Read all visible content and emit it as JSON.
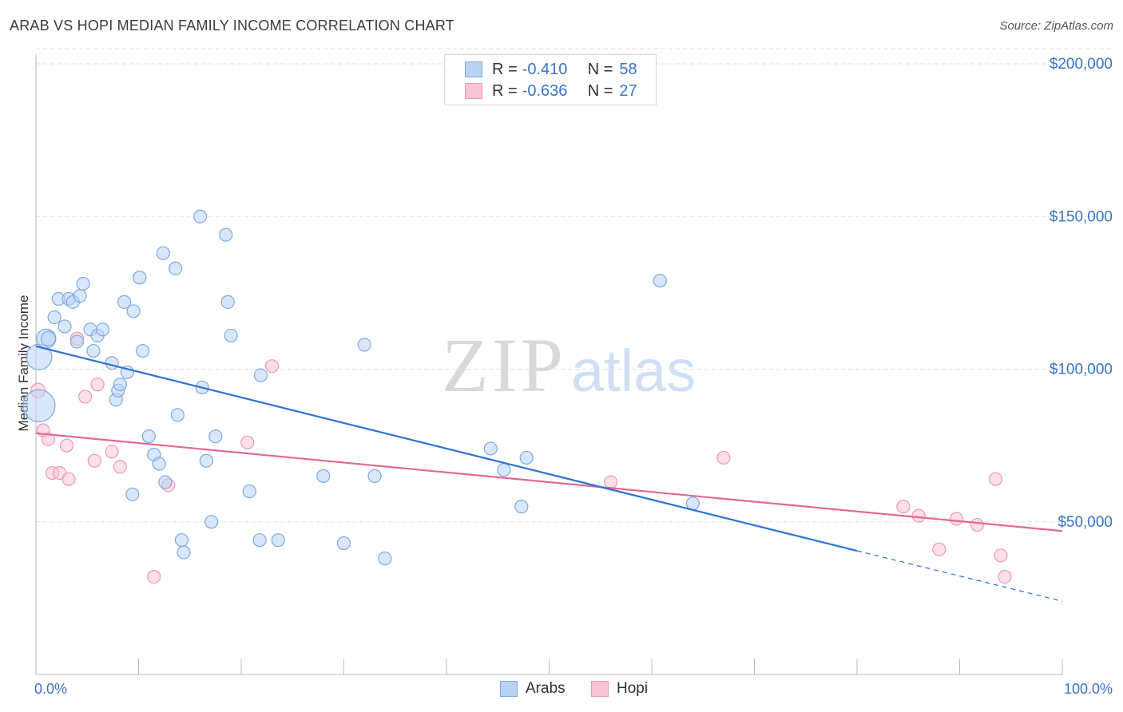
{
  "header": {
    "title": "ARAB VS HOPI MEDIAN FAMILY INCOME CORRELATION CHART",
    "source": "Source: ZipAtlas.com"
  },
  "watermark": {
    "zip": "ZIP",
    "atlas": "atlas"
  },
  "legend": {
    "rows": [
      {
        "r_label": "R =",
        "r_value": "-0.410",
        "n_label": "N =",
        "n_value": "58"
      },
      {
        "r_label": "R =",
        "r_value": "-0.636",
        "n_label": "N =",
        "n_value": "27"
      }
    ]
  },
  "bottom_legend": {
    "arabs": "Arabs",
    "hopi": "Hopi"
  },
  "colors": {
    "arabs_fill": "#b9d3f5",
    "arabs_stroke": "#7fa9e0",
    "arabs_line": "#2d73d2",
    "hopi_fill": "#f9c4d4",
    "hopi_stroke": "#ec9ab4",
    "hopi_line": "#e46892",
    "grid": "#e2e2e2",
    "value_text": "#3b73c8"
  },
  "chart_data": {
    "type": "scatter",
    "title": "ARAB VS HOPI MEDIAN FAMILY INCOME CORRELATION CHART",
    "xlabel": "",
    "ylabel": "Median Family Income",
    "xlim": [
      0,
      100
    ],
    "ylim": [
      0,
      205000
    ],
    "x_tick_labels": [
      "0.0%",
      "100.0%"
    ],
    "y_ticks": [
      50000,
      100000,
      150000,
      200000
    ],
    "y_tick_labels": [
      "$50,000",
      "$100,000",
      "$150,000",
      "$200,000"
    ],
    "grid": true,
    "legend_position": "top-center",
    "series": [
      {
        "name": "Arabs",
        "r": -0.41,
        "n": 58,
        "trend": {
          "x0": 0,
          "y0": 107500,
          "x1": 80,
          "y1": 40500,
          "dash_to_x": 100,
          "dash_to_y": 24000
        },
        "points": [
          [
            0.3,
            104000,
            16
          ],
          [
            0.3,
            88000,
            20
          ],
          [
            1.0,
            110000,
            12
          ],
          [
            1.2,
            110000,
            9
          ],
          [
            1.8,
            117000,
            8
          ],
          [
            2.2,
            123000,
            8
          ],
          [
            2.8,
            114000,
            8
          ],
          [
            3.2,
            123000,
            8
          ],
          [
            3.6,
            122000,
            8
          ],
          [
            4.0,
            109000,
            8
          ],
          [
            4.3,
            124000,
            8
          ],
          [
            4.6,
            128000,
            8
          ],
          [
            5.3,
            113000,
            8
          ],
          [
            5.6,
            106000,
            8
          ],
          [
            6.0,
            111000,
            8
          ],
          [
            6.5,
            113000,
            8
          ],
          [
            7.4,
            102000,
            8
          ],
          [
            7.8,
            90000,
            8
          ],
          [
            8.0,
            93000,
            8
          ],
          [
            8.2,
            95000,
            8
          ],
          [
            8.6,
            122000,
            8
          ],
          [
            8.9,
            99000,
            8
          ],
          [
            9.5,
            119000,
            8
          ],
          [
            9.4,
            59000,
            8
          ],
          [
            10.1,
            130000,
            8
          ],
          [
            10.4,
            106000,
            8
          ],
          [
            11.0,
            78000,
            8
          ],
          [
            11.5,
            72000,
            8
          ],
          [
            12.0,
            69000,
            8
          ],
          [
            12.4,
            138000,
            8
          ],
          [
            12.6,
            63000,
            8
          ],
          [
            13.6,
            133000,
            8
          ],
          [
            13.8,
            85000,
            8
          ],
          [
            14.2,
            44000,
            8
          ],
          [
            14.4,
            40000,
            8
          ],
          [
            16.0,
            150000,
            8
          ],
          [
            16.2,
            94000,
            8
          ],
          [
            16.6,
            70000,
            8
          ],
          [
            17.1,
            50000,
            8
          ],
          [
            17.5,
            78000,
            8
          ],
          [
            18.5,
            144000,
            8
          ],
          [
            18.7,
            122000,
            8
          ],
          [
            19.0,
            111000,
            8
          ],
          [
            20.8,
            60000,
            8
          ],
          [
            21.8,
            44000,
            8
          ],
          [
            21.9,
            98000,
            8
          ],
          [
            23.6,
            44000,
            8
          ],
          [
            28.0,
            65000,
            8
          ],
          [
            30.0,
            43000,
            8
          ],
          [
            32.0,
            108000,
            8
          ],
          [
            33.0,
            65000,
            8
          ],
          [
            34.0,
            38000,
            8
          ],
          [
            44.3,
            74000,
            8
          ],
          [
            45.6,
            67000,
            8
          ],
          [
            47.3,
            55000,
            8
          ],
          [
            47.8,
            71000,
            8
          ],
          [
            60.8,
            129000,
            8
          ],
          [
            64.0,
            56000,
            8
          ]
        ]
      },
      {
        "name": "Hopi",
        "r": -0.636,
        "n": 27,
        "trend": {
          "x0": 0,
          "y0": 79000,
          "x1": 100,
          "y1": 47000
        },
        "points": [
          [
            0.2,
            93000,
            9
          ],
          [
            0.7,
            80000,
            8
          ],
          [
            1.2,
            77000,
            8
          ],
          [
            1.6,
            66000,
            8
          ],
          [
            2.3,
            66000,
            8
          ],
          [
            3.0,
            75000,
            8
          ],
          [
            3.2,
            64000,
            8
          ],
          [
            4.0,
            110000,
            8
          ],
          [
            4.8,
            91000,
            8
          ],
          [
            5.7,
            70000,
            8
          ],
          [
            6.0,
            95000,
            8
          ],
          [
            7.4,
            73000,
            8
          ],
          [
            8.2,
            68000,
            8
          ],
          [
            11.5,
            32000,
            8
          ],
          [
            12.9,
            62000,
            8
          ],
          [
            20.6,
            76000,
            8
          ],
          [
            23.0,
            101000,
            8
          ],
          [
            56.0,
            63000,
            8
          ],
          [
            67.0,
            71000,
            8
          ],
          [
            84.5,
            55000,
            8
          ],
          [
            86.0,
            52000,
            8
          ],
          [
            88.0,
            41000,
            8
          ],
          [
            89.7,
            51000,
            8
          ],
          [
            91.7,
            49000,
            8
          ],
          [
            93.5,
            64000,
            8
          ],
          [
            94.0,
            39000,
            8
          ],
          [
            94.4,
            32000,
            8
          ]
        ]
      }
    ]
  }
}
